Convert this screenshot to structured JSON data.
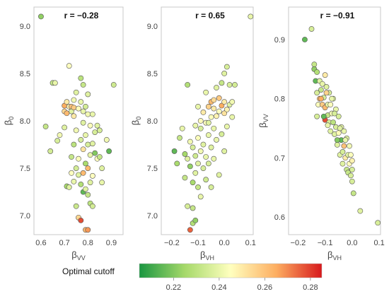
{
  "chart_data": [
    {
      "type": "scatter",
      "correlation_label": "r = −0.28",
      "xlabel": {
        "main": "β",
        "sub": "VV"
      },
      "ylabel": {
        "main": "β",
        "sub": "0"
      },
      "xlim": [
        0.57,
        0.95
      ],
      "ylim": [
        6.8,
        9.2
      ],
      "xticks": [
        0.6,
        0.7,
        0.8,
        0.9
      ],
      "xtick_labels": [
        "0.6",
        "0.7",
        "0.8",
        "0.9"
      ],
      "yticks": [
        7.0,
        7.5,
        8.0,
        8.5,
        9.0
      ],
      "ytick_labels": [
        "7.0",
        "7.5",
        "8.0",
        "8.5",
        "9.0"
      ],
      "grid": false,
      "colorvar": "optimal cutoff",
      "points": [
        [
          0.6,
          9.1,
          0.222
        ],
        [
          0.62,
          7.94,
          0.232
        ],
        [
          0.64,
          7.68,
          0.235
        ],
        [
          0.65,
          8.4,
          0.232
        ],
        [
          0.66,
          8.4,
          0.24
        ],
        [
          0.67,
          7.79,
          0.236
        ],
        [
          0.68,
          7.85,
          0.242
        ],
        [
          0.7,
          8.1,
          0.255
        ],
        [
          0.7,
          8.16,
          0.265
        ],
        [
          0.7,
          7.93,
          0.238
        ],
        [
          0.71,
          8.2,
          0.25
        ],
        [
          0.71,
          8.08,
          0.262
        ],
        [
          0.71,
          7.31,
          0.225
        ],
        [
          0.72,
          8.58,
          0.245
        ],
        [
          0.72,
          7.3,
          0.238
        ],
        [
          0.72,
          8.15,
          0.248
        ],
        [
          0.73,
          8.15,
          0.26
        ],
        [
          0.73,
          8.1,
          0.238
        ],
        [
          0.73,
          7.62,
          0.232
        ],
        [
          0.73,
          7.45,
          0.245
        ],
        [
          0.74,
          8.22,
          0.242
        ],
        [
          0.74,
          8.14,
          0.258
        ],
        [
          0.74,
          8.05,
          0.25
        ],
        [
          0.74,
          7.75,
          0.23
        ],
        [
          0.74,
          7.36,
          0.24
        ],
        [
          0.75,
          8.3,
          0.238
        ],
        [
          0.75,
          7.9,
          0.242
        ],
        [
          0.75,
          7.5,
          0.235
        ],
        [
          0.75,
          7.1,
          0.233
        ],
        [
          0.76,
          8.13,
          0.246
        ],
        [
          0.76,
          7.6,
          0.244
        ],
        [
          0.76,
          7.43,
          0.238
        ],
        [
          0.76,
          6.98,
          0.255
        ],
        [
          0.77,
          8.45,
          0.23
        ],
        [
          0.77,
          8.2,
          0.24
        ],
        [
          0.77,
          7.8,
          0.236
        ],
        [
          0.77,
          7.33,
          0.228
        ],
        [
          0.77,
          6.95,
          0.278
        ],
        [
          0.78,
          8.38,
          0.232
        ],
        [
          0.78,
          8.1,
          0.24
        ],
        [
          0.78,
          7.98,
          0.238
        ],
        [
          0.78,
          7.7,
          0.252
        ],
        [
          0.78,
          7.45,
          0.262
        ],
        [
          0.78,
          7.25,
          0.215
        ],
        [
          0.79,
          8.15,
          0.235
        ],
        [
          0.79,
          7.85,
          0.24
        ],
        [
          0.79,
          7.55,
          0.226
        ],
        [
          0.79,
          7.28,
          0.238
        ],
        [
          0.79,
          6.85,
          0.262
        ],
        [
          0.8,
          8.28,
          0.238
        ],
        [
          0.8,
          8.07,
          0.242
        ],
        [
          0.8,
          7.75,
          0.236
        ],
        [
          0.8,
          7.5,
          0.262
        ],
        [
          0.8,
          7.22,
          0.232
        ],
        [
          0.8,
          6.85,
          0.268
        ],
        [
          0.81,
          7.95,
          0.244
        ],
        [
          0.81,
          7.64,
          0.24
        ],
        [
          0.81,
          7.35,
          0.238
        ],
        [
          0.81,
          7.13,
          0.23
        ],
        [
          0.82,
          8.07,
          0.24
        ],
        [
          0.82,
          7.76,
          0.238
        ],
        [
          0.82,
          7.42,
          0.245
        ],
        [
          0.82,
          7.1,
          0.235
        ],
        [
          0.83,
          7.88,
          0.236
        ],
        [
          0.83,
          7.66,
          0.22
        ],
        [
          0.84,
          7.95,
          0.238
        ],
        [
          0.84,
          7.6,
          0.245
        ],
        [
          0.85,
          7.9,
          0.236
        ],
        [
          0.85,
          7.62,
          0.232
        ],
        [
          0.86,
          7.5,
          0.238
        ],
        [
          0.86,
          7.35,
          0.24
        ],
        [
          0.88,
          7.8,
          0.242
        ],
        [
          0.89,
          7.68,
          0.215
        ],
        [
          0.91,
          8.38,
          0.234
        ]
      ]
    },
    {
      "type": "scatter",
      "correlation_label": "r = 0.65",
      "xlabel": {
        "main": "β",
        "sub": "VH"
      },
      "ylabel": {
        "main": "β",
        "sub": "0"
      },
      "xlim": [
        -0.24,
        0.11
      ],
      "ylim": [
        6.8,
        9.2
      ],
      "xticks": [
        -0.2,
        -0.1,
        0.0,
        0.1
      ],
      "xtick_labels": [
        "−0.2",
        "−0.1",
        "0.0",
        "0.1"
      ],
      "yticks": [
        7.0,
        7.5,
        8.0,
        8.5,
        9.0
      ],
      "ytick_labels": [
        "7.0",
        "7.5",
        "8.0",
        "8.5",
        "9.0"
      ],
      "grid": false,
      "colorvar": "optimal cutoff",
      "points": [
        [
          -0.19,
          7.68,
          0.215
        ],
        [
          -0.18,
          7.55,
          0.226
        ],
        [
          -0.17,
          7.82,
          0.232
        ],
        [
          -0.16,
          7.92,
          0.24
        ],
        [
          -0.15,
          7.4,
          0.232
        ],
        [
          -0.15,
          7.65,
          0.225
        ],
        [
          -0.14,
          7.1,
          0.236
        ],
        [
          -0.14,
          8.38,
          0.228
        ],
        [
          -0.14,
          7.6,
          0.238
        ],
        [
          -0.13,
          7.78,
          0.242
        ],
        [
          -0.13,
          6.85,
          0.275
        ],
        [
          -0.13,
          7.52,
          0.222
        ],
        [
          -0.12,
          7.72,
          0.236
        ],
        [
          -0.12,
          7.35,
          0.226
        ],
        [
          -0.12,
          7.08,
          0.232
        ],
        [
          -0.12,
          6.92,
          0.228
        ],
        [
          -0.11,
          7.95,
          0.24
        ],
        [
          -0.11,
          7.63,
          0.234
        ],
        [
          -0.11,
          6.95,
          0.222
        ],
        [
          -0.11,
          7.45,
          0.238
        ],
        [
          -0.1,
          7.82,
          0.244
        ],
        [
          -0.1,
          7.55,
          0.238
        ],
        [
          -0.1,
          7.3,
          0.232
        ],
        [
          -0.1,
          8.15,
          0.24
        ],
        [
          -0.09,
          7.92,
          0.236
        ],
        [
          -0.09,
          7.68,
          0.242
        ],
        [
          -0.09,
          7.2,
          0.24
        ],
        [
          -0.09,
          8.0,
          0.246
        ],
        [
          -0.08,
          8.09,
          0.25
        ],
        [
          -0.08,
          7.75,
          0.238
        ],
        [
          -0.08,
          7.5,
          0.236
        ],
        [
          -0.07,
          8.3,
          0.24
        ],
        [
          -0.07,
          7.98,
          0.244
        ],
        [
          -0.07,
          7.62,
          0.24
        ],
        [
          -0.07,
          7.38,
          0.234
        ],
        [
          -0.06,
          8.15,
          0.256
        ],
        [
          -0.06,
          7.85,
          0.24
        ],
        [
          -0.06,
          7.55,
          0.236
        ],
        [
          -0.05,
          8.2,
          0.262
        ],
        [
          -0.05,
          8.04,
          0.244
        ],
        [
          -0.05,
          7.72,
          0.238
        ],
        [
          -0.05,
          7.3,
          0.236
        ],
        [
          -0.04,
          8.13,
          0.25
        ],
        [
          -0.04,
          7.92,
          0.24
        ],
        [
          -0.04,
          7.6,
          0.24
        ],
        [
          -0.03,
          8.35,
          0.238
        ],
        [
          -0.03,
          8.05,
          0.248
        ],
        [
          -0.03,
          7.8,
          0.24
        ],
        [
          -0.02,
          8.24,
          0.258
        ],
        [
          -0.02,
          8.1,
          0.244
        ],
        [
          -0.02,
          7.43,
          0.238
        ],
        [
          -0.01,
          8.4,
          0.232
        ],
        [
          -0.01,
          8.16,
          0.265
        ],
        [
          -0.01,
          7.86,
          0.236
        ],
        [
          0.0,
          8.5,
          0.238
        ],
        [
          0.0,
          8.2,
          0.25
        ],
        [
          0.0,
          8.08,
          0.252
        ],
        [
          0.0,
          7.68,
          0.238
        ],
        [
          0.01,
          8.12,
          0.248
        ],
        [
          0.01,
          7.94,
          0.24
        ],
        [
          0.02,
          8.38,
          0.236
        ],
        [
          0.02,
          8.17,
          0.238
        ],
        [
          0.03,
          8.2,
          0.242
        ],
        [
          0.03,
          8.04,
          0.24
        ],
        [
          0.04,
          8.38,
          0.235
        ],
        [
          0.1,
          9.1,
          0.24
        ],
        [
          0.01,
          8.57,
          0.236
        ],
        [
          -0.04,
          8.22,
          0.254
        ],
        [
          -0.06,
          7.98,
          0.238
        ]
      ]
    },
    {
      "type": "scatter",
      "correlation_label": "r = −0.91",
      "xlabel": {
        "main": "β",
        "sub": "VH"
      },
      "ylabel": {
        "main": "β",
        "sub": "VV"
      },
      "xlim": [
        -0.235,
        0.105
      ],
      "ylim": [
        0.57,
        0.955
      ],
      "xticks": [
        -0.2,
        -0.1,
        0.0,
        0.1
      ],
      "xtick_labels": [
        "−0.2",
        "−0.1",
        "0.0",
        "0.1"
      ],
      "yticks": [
        0.6,
        0.7,
        0.8,
        0.9
      ],
      "ytick_labels": [
        "0.6",
        "0.7",
        "0.8",
        "0.9"
      ],
      "grid": false,
      "colorvar": "optimal cutoff",
      "points": [
        [
          -0.175,
          0.9,
          0.215
        ],
        [
          -0.15,
          0.918,
          0.236
        ],
        [
          -0.14,
          0.858,
          0.232
        ],
        [
          -0.14,
          0.85,
          0.222
        ],
        [
          -0.135,
          0.83,
          0.215
        ],
        [
          -0.13,
          0.845,
          0.228
        ],
        [
          -0.13,
          0.81,
          0.236
        ],
        [
          -0.125,
          0.79,
          0.244
        ],
        [
          -0.12,
          0.83,
          0.238
        ],
        [
          -0.12,
          0.8,
          0.262
        ],
        [
          -0.115,
          0.815,
          0.232
        ],
        [
          -0.11,
          0.825,
          0.24
        ],
        [
          -0.11,
          0.79,
          0.258
        ],
        [
          -0.105,
          0.802,
          0.236
        ],
        [
          -0.1,
          0.84,
          0.25
        ],
        [
          -0.1,
          0.785,
          0.262
        ],
        [
          -0.1,
          0.764,
          0.278
        ],
        [
          -0.095,
          0.82,
          0.238
        ],
        [
          -0.09,
          0.79,
          0.24
        ],
        [
          -0.09,
          0.772,
          0.232
        ],
        [
          -0.085,
          0.81,
          0.236
        ],
        [
          -0.085,
          0.76,
          0.236
        ],
        [
          -0.08,
          0.79,
          0.244
        ],
        [
          -0.08,
          0.745,
          0.238
        ],
        [
          -0.075,
          0.775,
          0.242
        ],
        [
          -0.07,
          0.8,
          0.238
        ],
        [
          -0.07,
          0.76,
          0.23
        ],
        [
          -0.065,
          0.74,
          0.238
        ],
        [
          -0.06,
          0.782,
          0.24
        ],
        [
          -0.06,
          0.752,
          0.236
        ],
        [
          -0.055,
          0.722,
          0.238
        ],
        [
          -0.05,
          0.77,
          0.236
        ],
        [
          -0.05,
          0.742,
          0.246
        ],
        [
          -0.045,
          0.705,
          0.238
        ],
        [
          -0.04,
          0.752,
          0.24
        ],
        [
          -0.04,
          0.73,
          0.215
        ],
        [
          -0.035,
          0.71,
          0.236
        ],
        [
          -0.03,
          0.745,
          0.24
        ],
        [
          -0.03,
          0.72,
          0.26
        ],
        [
          -0.025,
          0.7,
          0.25
        ],
        [
          -0.02,
          0.733,
          0.238
        ],
        [
          -0.02,
          0.68,
          0.232
        ],
        [
          -0.015,
          0.705,
          0.238
        ],
        [
          -0.01,
          0.72,
          0.242
        ],
        [
          -0.01,
          0.69,
          0.246
        ],
        [
          -0.005,
          0.705,
          0.244
        ],
        [
          0.0,
          0.68,
          0.236
        ],
        [
          0.0,
          0.66,
          0.236
        ],
        [
          0.005,
          0.64,
          0.232
        ],
        [
          0.03,
          0.61,
          0.238
        ],
        [
          0.095,
          0.59,
          0.236
        ],
        [
          -0.13,
          0.77,
          0.236
        ],
        [
          -0.105,
          0.77,
          0.215
        ],
        [
          -0.115,
          0.8,
          0.265
        ],
        [
          -0.095,
          0.81,
          0.256
        ],
        [
          -0.09,
          0.755,
          0.24
        ],
        [
          -0.065,
          0.775,
          0.236
        ],
        [
          -0.055,
          0.73,
          0.22
        ],
        [
          -0.045,
          0.75,
          0.238
        ],
        [
          -0.035,
          0.69,
          0.238
        ],
        [
          -0.025,
          0.73,
          0.24
        ],
        [
          -0.015,
          0.675,
          0.232
        ],
        [
          -0.005,
          0.67,
          0.236
        ],
        [
          0.0,
          0.695,
          0.248
        ],
        [
          -0.075,
          0.8,
          0.24
        ]
      ]
    }
  ],
  "colorbar": {
    "label": "Optimal cutoff",
    "min": 0.205,
    "max": 0.285,
    "ticks": [
      0.22,
      0.24,
      0.26,
      0.28
    ],
    "tick_labels": [
      "0.22",
      "0.24",
      "0.26",
      "0.28"
    ],
    "stops": [
      "#1a9641",
      "#a6d96a",
      "#ffffbf",
      "#fdae61",
      "#d7191c"
    ]
  }
}
